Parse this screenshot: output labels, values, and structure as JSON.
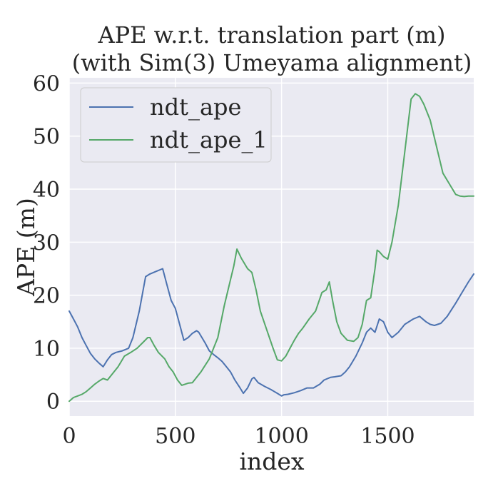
{
  "chart_data": {
    "type": "line",
    "title": "APE w.r.t. translation part (m)",
    "subtitle": "(with Sim(3) Umeyama alignment)",
    "xlabel": "index",
    "ylabel": "APE (m)",
    "xlim": [
      0,
      1905
    ],
    "ylim": [
      -2.8,
      61
    ],
    "xticks": [
      0,
      500,
      1000,
      1500
    ],
    "yticks": [
      0,
      10,
      20,
      30,
      40,
      50,
      60
    ],
    "grid": true,
    "legend_position": "top-left",
    "colors": {
      "background": "#eaeaf2",
      "grid": "#ffffff",
      "text": "#262626"
    },
    "series": [
      {
        "name": "ndt_ape",
        "color": "#4c72b0",
        "x": [
          0,
          20,
          40,
          60,
          80,
          100,
          120,
          140,
          160,
          180,
          200,
          220,
          250,
          280,
          300,
          330,
          360,
          380,
          410,
          440,
          460,
          480,
          500,
          520,
          540,
          560,
          580,
          600,
          610,
          640,
          660,
          680,
          700,
          720,
          740,
          760,
          780,
          800,
          820,
          840,
          860,
          870,
          890,
          920,
          950,
          980,
          1000,
          1010,
          1030,
          1060,
          1090,
          1120,
          1150,
          1180,
          1200,
          1230,
          1250,
          1280,
          1300,
          1320,
          1350,
          1380,
          1400,
          1420,
          1440,
          1460,
          1480,
          1500,
          1520,
          1550,
          1580,
          1620,
          1650,
          1680,
          1700,
          1720,
          1750,
          1780,
          1820,
          1850,
          1880,
          1905
        ],
        "y": [
          17,
          15.5,
          14,
          12,
          10.5,
          9,
          8,
          7.2,
          6.5,
          7.8,
          8.8,
          9.2,
          9.5,
          10,
          12,
          17,
          23.5,
          24,
          24.5,
          25,
          22,
          19,
          17.5,
          14.5,
          11.5,
          12,
          12.8,
          13.3,
          13,
          11,
          9.5,
          8.8,
          8.2,
          7.5,
          6.5,
          5.5,
          4,
          2.8,
          1.5,
          2.5,
          4.2,
          4.5,
          3.5,
          2.8,
          2.2,
          1.5,
          1,
          1.2,
          1.3,
          1.6,
          2,
          2.5,
          2.5,
          3.2,
          4,
          4.5,
          4.6,
          4.8,
          5.5,
          6.5,
          8.5,
          11,
          13,
          13.8,
          13,
          15.5,
          15,
          13,
          12,
          13,
          14.5,
          15.5,
          16,
          15,
          14.5,
          14.3,
          14.7,
          16,
          18.5,
          20.5,
          22.5,
          24
        ]
      },
      {
        "name": "ndt_ape_1",
        "color": "#55a868",
        "x": [
          0,
          20,
          40,
          60,
          80,
          100,
          120,
          140,
          160,
          180,
          200,
          230,
          260,
          290,
          320,
          350,
          370,
          380,
          400,
          420,
          450,
          470,
          490,
          510,
          530,
          560,
          580,
          620,
          660,
          700,
          730,
          760,
          775,
          790,
          810,
          840,
          860,
          880,
          900,
          930,
          960,
          980,
          1000,
          1020,
          1040,
          1060,
          1080,
          1100,
          1130,
          1160,
          1190,
          1210,
          1225,
          1240,
          1260,
          1280,
          1310,
          1340,
          1360,
          1380,
          1400,
          1420,
          1440,
          1450,
          1460,
          1480,
          1500,
          1520,
          1550,
          1580,
          1610,
          1630,
          1650,
          1670,
          1700,
          1730,
          1760,
          1790,
          1820,
          1840,
          1860,
          1880,
          1905
        ],
        "y": [
          0,
          0.7,
          1,
          1.3,
          1.8,
          2.5,
          3.2,
          3.8,
          4.3,
          4,
          5,
          6.5,
          8.5,
          9.2,
          10,
          11.2,
          12,
          12,
          10.5,
          9.2,
          8,
          6.5,
          5.5,
          4,
          3,
          3.4,
          3.5,
          5.5,
          8,
          12,
          18,
          23,
          25.5,
          28.7,
          27,
          25,
          24.3,
          21,
          17,
          13.5,
          10,
          7.8,
          7.6,
          8.5,
          10,
          11.5,
          12.8,
          13.8,
          15.5,
          17,
          20.5,
          21,
          22.5,
          19,
          15,
          12.8,
          11.5,
          11.3,
          12,
          14.5,
          19,
          19.5,
          25,
          28.5,
          28.2,
          27.3,
          26.8,
          30,
          37,
          47,
          57,
          58,
          57.5,
          56,
          53,
          48,
          43,
          41,
          39,
          38.7,
          38.6,
          38.7,
          38.7
        ]
      }
    ]
  }
}
